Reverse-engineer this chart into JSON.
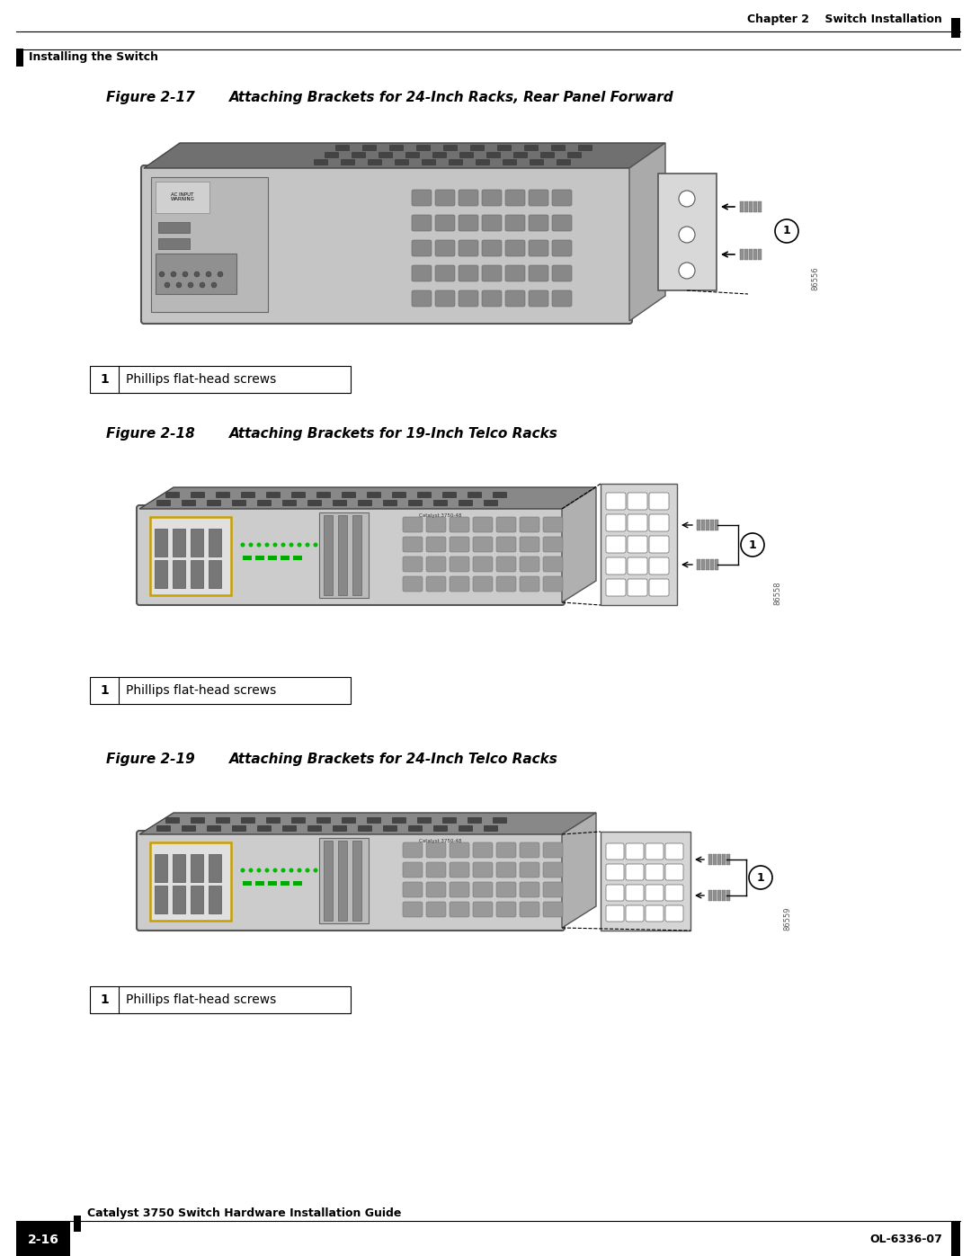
{
  "page_bg": "#ffffff",
  "header_line_color": "#000000",
  "footer_line_color": "#000000",
  "header_right_text": "Chapter 2    Switch Installation",
  "header_left_text": "Installing the Switch",
  "footer_left_box_text": "2-16",
  "footer_center_text": "Catalyst 3750 Switch Hardware Installation Guide",
  "footer_right_text": "OL-6336-07",
  "figure1_label": "Figure 2-17",
  "figure1_title": "Attaching Brackets for 24-Inch Racks, Rear Panel Forward",
  "figure2_label": "Figure 2-18",
  "figure2_title": "Attaching Brackets for 19-Inch Telco Racks",
  "figure3_label": "Figure 2-19",
  "figure3_title": "Attaching Brackets for 24-Inch Telco Racks",
  "legend_number": "1",
  "legend_text": "Phillips flat-head screws",
  "fig1_id": "86556",
  "fig2_id": "86558",
  "fig3_id": "86559",
  "label_fontsize": 11,
  "title_fontsize": 11,
  "header_fontsize": 9,
  "footer_fontsize": 9,
  "legend_fontsize": 10
}
